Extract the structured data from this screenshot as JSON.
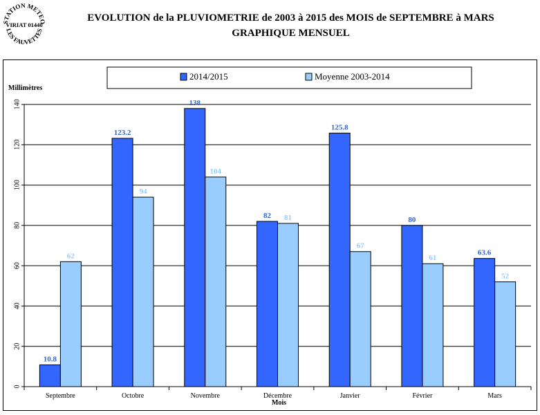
{
  "stamp": {
    "line1": "STATION METEO",
    "line2": "VIRIAT 01440",
    "line3": "LES FAUVETTES"
  },
  "title": {
    "line1": "EVOLUTION de la PLUVIOMETRIE de 2003 à 2015 des MOIS de SEPTEMBRE à MARS",
    "line2": "GRAPHIQUE MENSUEL"
  },
  "chart_data": {
    "type": "bar",
    "ylabel": "Millimètres",
    "xlabel": "Mois",
    "ylim": [
      0,
      140
    ],
    "yticks": [
      0,
      20,
      40,
      60,
      80,
      100,
      120,
      140
    ],
    "grid": true,
    "legend_position": "top",
    "categories": [
      "Septembre",
      "Octobre",
      "Novembre",
      "Décembre",
      "Janvier",
      "Février",
      "Mars"
    ],
    "series": [
      {
        "name": "2014/2015",
        "color": "#3366ff",
        "label_color": "#3366cc",
        "values": [
          10.8,
          123.2,
          138,
          82,
          125.8,
          80,
          63.6
        ]
      },
      {
        "name": "Moyenne 2003-2014",
        "color": "#99ccff",
        "label_color": "#99ccff",
        "values": [
          62,
          94,
          104,
          81,
          67,
          61,
          52
        ]
      }
    ]
  }
}
